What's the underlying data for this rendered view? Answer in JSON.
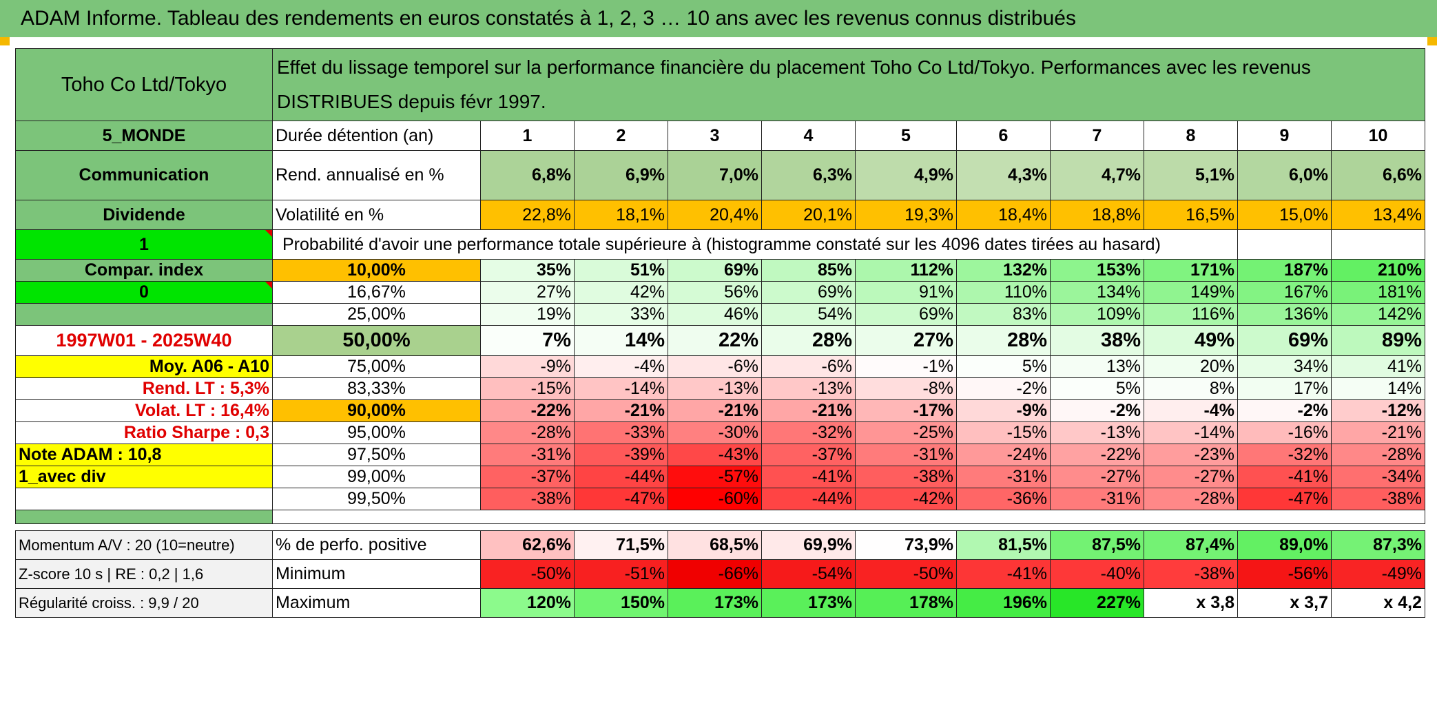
{
  "title": "ADAM Informe. Tableau des rendements en euros constatés à 1, 2, 3 … 10 ans avec les revenus connus distribués",
  "side": {
    "company": "Toho Co Ltd/Tokyo",
    "region": "5_MONDE",
    "sector": "Communication",
    "dividend_label": "Dividende",
    "flag_one": "1",
    "compar_label": "Compar. index",
    "flag_zero": "0",
    "period": "1997W01 - 2025W40",
    "moy": "Moy. A06 - A10",
    "rend_lt": "Rend. LT :   5,3%",
    "volat_lt": "Volat. LT :   16,4%",
    "sharpe": "Ratio Sharpe :   0,3",
    "note": "Note ADAM : 10,8",
    "avec_div": "1_avec div",
    "momentum": "Momentum A/V : 20 (10=neutre)",
    "zscore": "Z-score 10 s | RE : 0,2 | 1,6",
    "regularite": "Régularité croiss. : 9,9 / 20"
  },
  "header_desc": "Effet du lissage temporel sur la performance financière du placement Toho Co Ltd/Tokyo. Performances avec les revenus DISTRIBUES depuis févr 1997.",
  "duree_label": "Durée détention (an)",
  "years": [
    "1",
    "2",
    "3",
    "4",
    "5",
    "6",
    "7",
    "8",
    "9",
    "10"
  ],
  "rend_label": "Rend. annualisé en %",
  "rend": [
    "6,8%",
    "6,9%",
    "7,0%",
    "6,3%",
    "4,9%",
    "4,3%",
    "4,7%",
    "5,1%",
    "6,0%",
    "6,6%"
  ],
  "vol_label": "Volatilité en %",
  "vol": [
    "22,8%",
    "18,1%",
    "20,4%",
    "20,1%",
    "19,3%",
    "18,4%",
    "18,8%",
    "16,5%",
    "15,0%",
    "13,4%"
  ],
  "proba_label": "Probabilité d'avoir une performance totale supérieure à (histogramme constaté sur les 4096 dates tirées au hasard)",
  "prob_rows": [
    {
      "p": "10,00%",
      "v": [
        "35%",
        "51%",
        "69%",
        "85%",
        "112%",
        "132%",
        "153%",
        "171%",
        "187%",
        "210%"
      ],
      "bold": true
    },
    {
      "p": "16,67%",
      "v": [
        "27%",
        "42%",
        "56%",
        "69%",
        "91%",
        "110%",
        "134%",
        "149%",
        "167%",
        "181%"
      ],
      "bold": false
    },
    {
      "p": "25,00%",
      "v": [
        "19%",
        "33%",
        "46%",
        "54%",
        "69%",
        "83%",
        "109%",
        "116%",
        "136%",
        "142%"
      ],
      "bold": false
    },
    {
      "p": "50,00%",
      "v": [
        "7%",
        "14%",
        "22%",
        "28%",
        "27%",
        "28%",
        "38%",
        "49%",
        "69%",
        "89%"
      ],
      "bold": true
    },
    {
      "p": "75,00%",
      "v": [
        "-9%",
        "-4%",
        "-6%",
        "-6%",
        "-1%",
        "5%",
        "13%",
        "20%",
        "34%",
        "41%"
      ],
      "bold": false
    },
    {
      "p": "83,33%",
      "v": [
        "-15%",
        "-14%",
        "-13%",
        "-13%",
        "-8%",
        "-2%",
        "5%",
        "8%",
        "17%",
        "14%"
      ],
      "bold": false
    },
    {
      "p": "90,00%",
      "v": [
        "-22%",
        "-21%",
        "-21%",
        "-21%",
        "-17%",
        "-9%",
        "-2%",
        "-4%",
        "-2%",
        "-12%"
      ],
      "bold": true
    },
    {
      "p": "95,00%",
      "v": [
        "-28%",
        "-33%",
        "-30%",
        "-32%",
        "-25%",
        "-15%",
        "-13%",
        "-14%",
        "-16%",
        "-21%"
      ],
      "bold": false
    },
    {
      "p": "97,50%",
      "v": [
        "-31%",
        "-39%",
        "-43%",
        "-37%",
        "-31%",
        "-24%",
        "-22%",
        "-23%",
        "-32%",
        "-28%"
      ],
      "bold": false
    },
    {
      "p": "99,00%",
      "v": [
        "-37%",
        "-44%",
        "-57%",
        "-41%",
        "-38%",
        "-31%",
        "-27%",
        "-27%",
        "-41%",
        "-34%"
      ],
      "bold": false
    },
    {
      "p": "99,50%",
      "v": [
        "-38%",
        "-47%",
        "-60%",
        "-44%",
        "-42%",
        "-36%",
        "-31%",
        "-28%",
        "-47%",
        "-38%"
      ],
      "bold": false
    }
  ],
  "pos_label": "% de perfo. positive",
  "pos": [
    "62,6%",
    "71,5%",
    "68,5%",
    "69,9%",
    "73,9%",
    "81,5%",
    "87,5%",
    "87,4%",
    "89,0%",
    "87,3%"
  ],
  "min_label": "Minimum",
  "min": [
    "-50%",
    "-51%",
    "-66%",
    "-54%",
    "-50%",
    "-41%",
    "-40%",
    "-38%",
    "-56%",
    "-49%"
  ],
  "max_label": "Maximum",
  "max": [
    "120%",
    "150%",
    "173%",
    "173%",
    "178%",
    "196%",
    "227%",
    "x 3,8",
    "x 3,7",
    "x 4,2"
  ],
  "colors": {
    "header_green": "#7cc47a",
    "light_green": "#c6e0b4",
    "orange": "#ffc000",
    "bright_green": "#00e400",
    "yellow": "#ffff00",
    "red_text": "#e00000"
  }
}
